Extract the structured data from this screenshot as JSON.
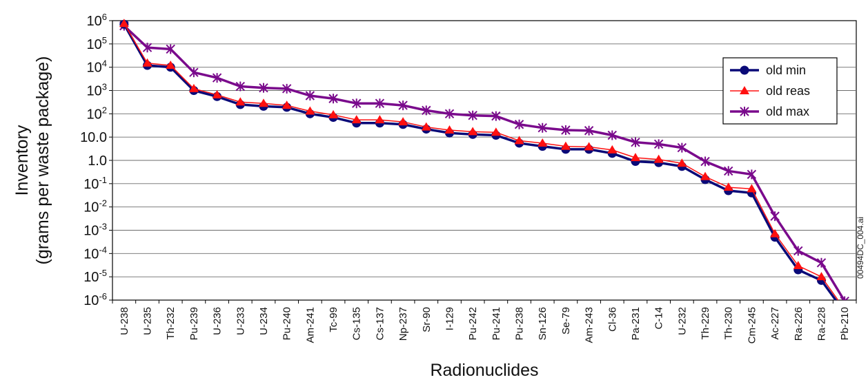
{
  "chart_data": {
    "type": "line",
    "xlabel": "Radionuclides",
    "ylabel_line1": "Inventory",
    "ylabel_line2": "(grams per waste package)",
    "yscale": "log",
    "ylim": [
      1e-06,
      1000000.0
    ],
    "yticks": [
      {
        "base": "10",
        "exp": "6",
        "value": 1000000.0
      },
      {
        "base": "10",
        "exp": "5",
        "value": 100000.0
      },
      {
        "base": "10",
        "exp": "4",
        "value": 10000.0
      },
      {
        "base": "10",
        "exp": "3",
        "value": 1000.0
      },
      {
        "base": "10",
        "exp": "2",
        "value": 100.0
      },
      {
        "base": "10.0",
        "exp": "",
        "value": 10
      },
      {
        "base": "1.0",
        "exp": "",
        "value": 1
      },
      {
        "base": "10",
        "exp": "-1",
        "value": 0.1
      },
      {
        "base": "10",
        "exp": "-2",
        "value": 0.01
      },
      {
        "base": "10",
        "exp": "-3",
        "value": 0.001
      },
      {
        "base": "10",
        "exp": "-4",
        "value": 0.0001
      },
      {
        "base": "10",
        "exp": "-5",
        "value": 1e-05
      },
      {
        "base": "10",
        "exp": "-6",
        "value": 1e-06
      }
    ],
    "grid": "horizontal",
    "legend_position": "top-right",
    "categories": [
      "U-238",
      "U-235",
      "Th-232",
      "Pu-239",
      "U-236",
      "U-233",
      "U-234",
      "Pu-240",
      "Am-241",
      "Tc-99",
      "Cs-135",
      "Cs-137",
      "Np-237",
      "Sr-90",
      "I-129",
      "Pu-242",
      "Pu-241",
      "Pu-238",
      "Sn-126",
      "Se-79",
      "Am-243",
      "Cl-36",
      "Pa-231",
      "C-14",
      "U-232",
      "Th-229",
      "Th-230",
      "Cm-245",
      "Ac-227",
      "Ra-226",
      "Ra-228",
      "Pb-210"
    ],
    "series": [
      {
        "name": "old min",
        "color": "#0a0a78",
        "marker": "circle",
        "values": [
          700000,
          12000,
          10000,
          1000,
          550,
          250,
          210,
          190,
          100,
          70,
          40,
          40,
          35,
          22,
          15,
          13,
          12,
          5.5,
          4,
          3,
          3,
          2,
          0.9,
          0.8,
          0.55,
          0.15,
          0.05,
          0.04,
          0.0005,
          2e-05,
          7e-06,
          3e-07
        ]
      },
      {
        "name": "old reas",
        "color": "#ff1010",
        "marker": "triangle",
        "values": [
          750000,
          15000,
          12000,
          1200,
          650,
          320,
          280,
          230,
          130,
          90,
          55,
          55,
          45,
          27,
          20,
          17,
          16,
          7,
          5.5,
          4,
          3.8,
          2.8,
          1.3,
          1.1,
          0.75,
          0.2,
          0.07,
          0.06,
          0.0007,
          3e-05,
          1e-05,
          4e-07
        ]
      },
      {
        "name": "old max",
        "color": "#7a0a8c",
        "marker": "star",
        "values": [
          600000,
          70000,
          60000,
          6000,
          3500,
          1500,
          1300,
          1200,
          600,
          450,
          280,
          280,
          230,
          140,
          100,
          85,
          80,
          35,
          25,
          20,
          19,
          12,
          6,
          5,
          3.5,
          0.9,
          0.35,
          0.25,
          0.004,
          0.00013,
          4e-05,
          9e-07
        ]
      }
    ]
  },
  "side_note": "00494DC_004.ai"
}
